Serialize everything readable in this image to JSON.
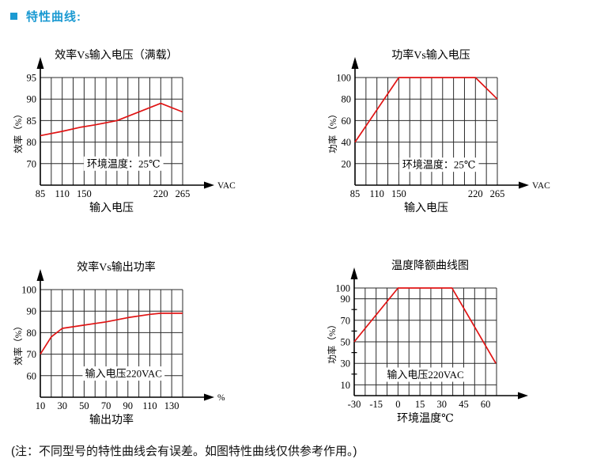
{
  "header": {
    "title": "特性曲线:",
    "accent_color": "#1b9ad2"
  },
  "note": "(注：不同型号的特性曲线会有误差。如图特性曲线仅供参考作用。)",
  "colors": {
    "curve": "#e01414",
    "grid": "#2a2a2a",
    "axis": "#000000",
    "title_blue": "#1b9ad2"
  },
  "chart_data": [
    {
      "type": "line",
      "title": "效率Vs输入电压（满载）",
      "ylabel": "效率（%）",
      "xlabel": "输入电压",
      "x_unit": "VAC",
      "annotation": "环境温度：25℃",
      "n_cols": 13,
      "x_ticks": {
        "values": [
          85,
          110,
          150,
          220,
          265
        ],
        "cols": [
          0,
          2,
          4,
          11,
          13
        ]
      },
      "y_scale": {
        "mode": "ticks",
        "labels": [
          95,
          90,
          85,
          80,
          70
        ]
      },
      "points": [
        [
          85,
          81.5
        ],
        [
          110,
          82.5
        ],
        [
          145,
          83.5
        ],
        [
          160,
          84
        ],
        [
          180,
          85
        ],
        [
          220,
          89
        ],
        [
          265,
          87
        ]
      ],
      "annotation_pos": {
        "x_frac": 0.585,
        "y_frac": 0.8
      }
    },
    {
      "type": "line",
      "title": "功率Vs输入电压",
      "ylabel": "功率（%）",
      "xlabel": "输入电压",
      "x_unit": "VAC",
      "annotation": "环境温度：25℃",
      "n_cols": 13,
      "x_ticks": {
        "values": [
          85,
          110,
          150,
          220,
          265
        ],
        "cols": [
          0,
          2,
          4,
          11,
          13
        ]
      },
      "y_scale": {
        "mode": "ticks",
        "labels": [
          100,
          80,
          60,
          40,
          20
        ]
      },
      "points": [
        [
          85,
          40
        ],
        [
          150,
          100
        ],
        [
          220,
          100
        ],
        [
          265,
          80
        ]
      ],
      "annotation_pos": {
        "x_frac": 0.59,
        "y_frac": 0.81
      }
    },
    {
      "type": "line",
      "title": "效率Vs输出功率",
      "ylabel": "效率（%）",
      "xlabel": "输出功率",
      "x_unit": "%",
      "annotation": "输入电压220VAC",
      "n_cols": 13,
      "x_ticks": {
        "values": [
          10,
          30,
          50,
          70,
          90,
          110,
          130
        ],
        "cols": [
          0,
          2,
          4,
          6,
          8,
          10,
          12
        ]
      },
      "y_scale": {
        "mode": "ticks",
        "labels": [
          100,
          90,
          80,
          70,
          60
        ]
      },
      "points": [
        [
          10,
          70
        ],
        [
          20,
          78
        ],
        [
          30,
          82
        ],
        [
          50,
          83.5
        ],
        [
          70,
          85
        ],
        [
          90,
          87
        ],
        [
          110,
          88.5
        ],
        [
          120,
          89
        ],
        [
          140,
          89
        ]
      ],
      "annotation_pos": {
        "x_frac": 0.585,
        "y_frac": 0.78
      }
    },
    {
      "type": "line",
      "title": "温度降额曲线图",
      "ylabel": "功率（%）",
      "xlabel": "环境温度℃",
      "x_unit": "",
      "annotation": "输入电压220VAC",
      "n_cols": 13,
      "x_ticks": {
        "values": [
          -30,
          -15,
          0,
          15,
          30,
          45,
          60
        ],
        "cols": [
          0,
          2,
          4,
          6,
          8,
          10,
          12
        ]
      },
      "y_scale": {
        "mode": "linear",
        "min": 0,
        "max": 100,
        "gridlines": [
          100,
          90,
          70,
          50,
          30,
          10
        ],
        "minor_ticks": [
          80,
          60,
          40,
          20
        ]
      },
      "points": [
        [
          -30,
          50
        ],
        [
          0,
          100
        ],
        [
          37,
          100
        ],
        [
          67,
          30
        ]
      ],
      "annotation_pos": {
        "x_frac": 0.5,
        "y_frac": 0.805
      }
    }
  ]
}
